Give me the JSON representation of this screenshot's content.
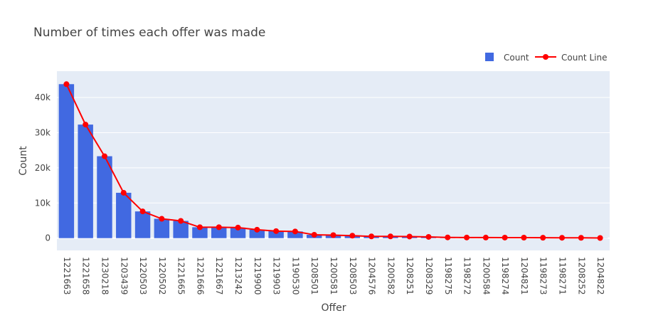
{
  "chart_data": {
    "type": "bar",
    "title": "Number of times each offer was made",
    "xlabel": "Offer",
    "ylabel": "Count",
    "ylim": [
      -3500,
      47500
    ],
    "y_ticks": [
      0,
      10000,
      20000,
      30000,
      40000
    ],
    "y_tick_labels": [
      "0",
      "10k",
      "20k",
      "30k",
      "40k"
    ],
    "grid": true,
    "legend_position": "top-right",
    "categories": [
      "1221663",
      "1221658",
      "1230218",
      "1203439",
      "1220503",
      "1220502",
      "1221665",
      "1221666",
      "1221667",
      "1213242",
      "1219900",
      "1219903",
      "1190530",
      "1208501",
      "1200581",
      "1208503",
      "1204576",
      "1200582",
      "1208251",
      "1208329",
      "1198275",
      "1198272",
      "1200584",
      "1198274",
      "1204821",
      "1198273",
      "1198271",
      "1208252",
      "1204822"
    ],
    "series": [
      {
        "name": "Count",
        "kind": "bar",
        "color": "#4169e1",
        "values": [
          43800,
          32300,
          23300,
          12900,
          7600,
          5500,
          4900,
          3100,
          3100,
          3000,
          2400,
          2000,
          1900,
          950,
          850,
          700,
          500,
          500,
          450,
          350,
          200,
          180,
          160,
          150,
          140,
          120,
          100,
          90,
          40
        ]
      },
      {
        "name": "Count Line",
        "kind": "line",
        "color": "#ff0000",
        "values": [
          43800,
          32300,
          23300,
          12900,
          7600,
          5500,
          4900,
          3100,
          3100,
          3000,
          2400,
          2000,
          1900,
          950,
          850,
          700,
          500,
          500,
          450,
          350,
          200,
          180,
          160,
          150,
          140,
          120,
          100,
          90,
          40
        ]
      }
    ],
    "colors": {
      "plot_bg": "#e5ecf6",
      "grid": "#ffffff",
      "text": "#444444",
      "title": "#444444"
    }
  }
}
